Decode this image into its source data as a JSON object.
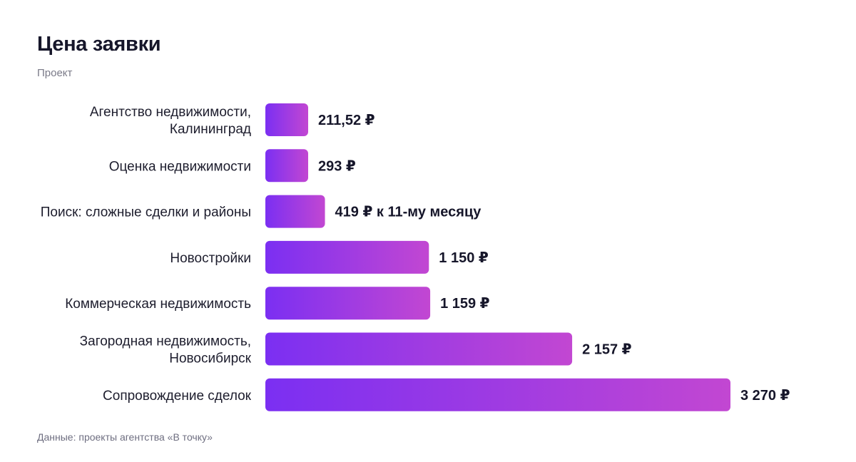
{
  "header": {
    "title": "Цена заявки",
    "subtitle": "Проект"
  },
  "footer": {
    "source": "Данные: проекты агентства «В точку»"
  },
  "colors": {
    "bar_start": "#7b2ff2",
    "bar_end": "#c247d2"
  },
  "chart_data": {
    "type": "bar",
    "orientation": "horizontal",
    "title": "Цена заявки",
    "subtitle": "Проект",
    "categories": [
      [
        "Агентство недвижимости,",
        "Калининград"
      ],
      [
        "Оценка недвижимости"
      ],
      [
        "Поиск: сложные сделки и районы"
      ],
      [
        "Новостройки"
      ],
      [
        "Коммерческая недвижимость"
      ],
      [
        "Загородная недвижимость,",
        "Новосибирск"
      ],
      [
        "Сопровождение сделок"
      ]
    ],
    "values": [
      211.52,
      293,
      419,
      1150,
      1159,
      2157,
      3270
    ],
    "value_labels": [
      "211,52 ₽",
      "293 ₽",
      "419 ₽ к 11-му месяцу",
      "1 150 ₽",
      "1 159 ₽",
      "2 157 ₽",
      "3 270 ₽"
    ],
    "xlim": [
      0,
      3270
    ],
    "grid": false,
    "legend": "none"
  }
}
